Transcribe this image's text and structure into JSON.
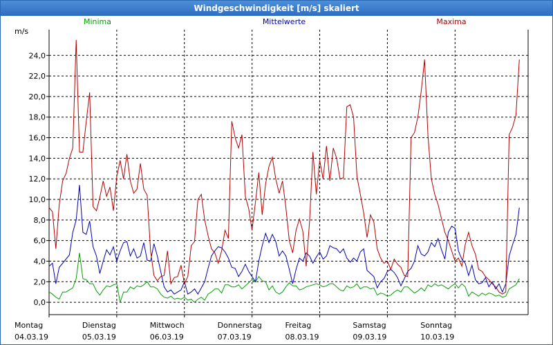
{
  "window": {
    "title": "Windgeschwindigkeit [m/s] skaliert"
  },
  "chart_data": {
    "type": "line",
    "title": "Windgeschwindigkeit [m/s] skaliert",
    "ylabel": "m/s",
    "ylim": [
      -1.2,
      26.5
    ],
    "yticks": [
      0,
      2,
      4,
      6,
      8,
      10,
      12,
      14,
      16,
      18,
      20,
      22,
      24
    ],
    "ytick_labels": [
      "0,0",
      "2,0",
      "4,0",
      "6,0",
      "8,0",
      "10,0",
      "12,0",
      "14,0",
      "16,0",
      "18,0",
      "20,0",
      "22,0",
      "24,0"
    ],
    "xlim": [
      0,
      7.08
    ],
    "x_ticks": [
      {
        "x": 0,
        "day": "Montag",
        "date": "04.03.19"
      },
      {
        "x": 1,
        "day": "Dienstag",
        "date": "05.03.19"
      },
      {
        "x": 2,
        "day": "Mittwoch",
        "date": "06.03.19"
      },
      {
        "x": 3,
        "day": "Donnerstag",
        "date": "07.03.19"
      },
      {
        "x": 4,
        "day": "Freitag",
        "date": "08.03.19"
      },
      {
        "x": 5,
        "day": "Samstag",
        "date": "09.03.19"
      },
      {
        "x": 6,
        "day": "Sonntag",
        "date": "10.03.19"
      }
    ],
    "grid": true,
    "series": [
      {
        "name": "Minima",
        "color": "#00a000",
        "x": [
          0.0,
          0.05,
          0.1,
          0.15,
          0.2,
          0.25,
          0.3,
          0.35,
          0.4,
          0.45,
          0.5,
          0.55,
          0.6,
          0.65,
          0.7,
          0.75,
          0.8,
          0.85,
          0.9,
          0.95,
          1.0,
          1.05,
          1.1,
          1.15,
          1.2,
          1.25,
          1.3,
          1.35,
          1.4,
          1.45,
          1.5,
          1.55,
          1.6,
          1.65,
          1.7,
          1.75,
          1.8,
          1.85,
          1.9,
          1.95,
          2.0,
          2.05,
          2.1,
          2.15,
          2.2,
          2.25,
          2.3,
          2.35,
          2.4,
          2.45,
          2.5,
          2.55,
          2.6,
          2.65,
          2.7,
          2.75,
          2.8,
          2.85,
          2.9,
          2.95,
          3.0,
          3.05,
          3.1,
          3.15,
          3.2,
          3.25,
          3.3,
          3.35,
          3.4,
          3.45,
          3.5,
          3.55,
          3.6,
          3.65,
          3.7,
          3.75,
          3.8,
          3.85,
          3.9,
          3.95,
          4.0,
          4.05,
          4.1,
          4.15,
          4.2,
          4.25,
          4.3,
          4.35,
          4.4,
          4.45,
          4.5,
          4.55,
          4.6,
          4.65,
          4.7,
          4.75,
          4.8,
          4.85,
          4.9,
          4.95,
          5.0,
          5.05,
          5.1,
          5.15,
          5.2,
          5.25,
          5.3,
          5.35,
          5.4,
          5.45,
          5.5,
          5.55,
          5.6,
          5.65,
          5.7,
          5.75,
          5.8,
          5.85,
          5.9,
          5.95,
          6.0,
          6.05,
          6.1,
          6.15,
          6.2,
          6.25,
          6.3,
          6.35,
          6.4,
          6.45,
          6.5,
          6.55,
          6.6,
          6.65,
          6.7,
          6.75,
          6.8,
          6.85,
          6.9,
          6.95
        ],
        "values": [
          1.0,
          0.8,
          0.5,
          0.3,
          1.0,
          1.0,
          1.2,
          1.4,
          2.3,
          4.8,
          2.3,
          2.2,
          1.8,
          1.8,
          1.1,
          0.7,
          1.2,
          1.6,
          1.5,
          1.7,
          1.8,
          0.0,
          1.0,
          1.0,
          1.5,
          1.3,
          1.6,
          1.5,
          1.7,
          2.0,
          1.5,
          1.5,
          1.3,
          0.8,
          0.5,
          0.4,
          0.6,
          0.3,
          0.4,
          0.3,
          0.5,
          0.2,
          0.3,
          0.0,
          0.3,
          0.5,
          0.2,
          0.8,
          1.0,
          1.3,
          1.3,
          0.9,
          1.7,
          1.7,
          1.5,
          1.5,
          1.7,
          1.3,
          1.6,
          1.9,
          2.2,
          2.0,
          2.5,
          2.1,
          2.0,
          1.2,
          1.6,
          1.0,
          0.8,
          1.0,
          1.5,
          1.9,
          1.6,
          1.6,
          1.2,
          1.3,
          1.5,
          1.6,
          1.7,
          1.8,
          1.7,
          1.5,
          1.6,
          1.8,
          1.8,
          1.5,
          1.2,
          1.1,
          1.6,
          1.4,
          1.5,
          1.8,
          1.3,
          1.5,
          1.5,
          1.3,
          1.4,
          0.7,
          0.9,
          0.8,
          0.6,
          0.7,
          1.0,
          1.2,
          1.0,
          1.5,
          1.5,
          1.2,
          0.9,
          1.1,
          1.4,
          1.1,
          1.7,
          1.5,
          1.8,
          1.6,
          1.7,
          1.5,
          1.3,
          1.6,
          1.8,
          1.4,
          1.8,
          1.5,
          0.6,
          1.0,
          0.8,
          0.6,
          0.9,
          0.7,
          0.9,
          0.8,
          0.6,
          0.7,
          0.5,
          0.6,
          1.3,
          1.5,
          1.7,
          2.3
        ]
      },
      {
        "name": "Mittelwerte",
        "color": "#0000b0",
        "x": [
          0.0,
          0.05,
          0.1,
          0.15,
          0.2,
          0.25,
          0.3,
          0.35,
          0.4,
          0.45,
          0.5,
          0.55,
          0.6,
          0.65,
          0.7,
          0.75,
          0.8,
          0.85,
          0.9,
          0.95,
          1.0,
          1.05,
          1.1,
          1.15,
          1.2,
          1.25,
          1.3,
          1.35,
          1.4,
          1.45,
          1.5,
          1.55,
          1.6,
          1.65,
          1.7,
          1.75,
          1.8,
          1.85,
          1.9,
          1.95,
          2.0,
          2.05,
          2.1,
          2.15,
          2.2,
          2.25,
          2.3,
          2.35,
          2.4,
          2.45,
          2.5,
          2.55,
          2.6,
          2.65,
          2.7,
          2.75,
          2.8,
          2.85,
          2.9,
          2.95,
          3.0,
          3.05,
          3.1,
          3.15,
          3.2,
          3.25,
          3.3,
          3.35,
          3.4,
          3.45,
          3.5,
          3.55,
          3.6,
          3.65,
          3.7,
          3.75,
          3.8,
          3.85,
          3.9,
          3.95,
          4.0,
          4.05,
          4.1,
          4.15,
          4.2,
          4.25,
          4.3,
          4.35,
          4.4,
          4.45,
          4.5,
          4.55,
          4.6,
          4.65,
          4.7,
          4.75,
          4.8,
          4.85,
          4.9,
          4.95,
          5.0,
          5.05,
          5.1,
          5.15,
          5.2,
          5.25,
          5.3,
          5.35,
          5.4,
          5.45,
          5.5,
          5.55,
          5.6,
          5.65,
          5.7,
          5.75,
          5.8,
          5.85,
          5.9,
          5.95,
          6.0,
          6.05,
          6.1,
          6.15,
          6.2,
          6.25,
          6.3,
          6.35,
          6.4,
          6.45,
          6.5,
          6.55,
          6.6,
          6.65,
          6.7,
          6.75,
          6.8,
          6.85,
          6.9,
          6.95
        ],
        "values": [
          3.5,
          3.8,
          1.8,
          3.4,
          3.8,
          4.2,
          4.6,
          6.8,
          8.0,
          11.4,
          6.8,
          6.6,
          7.9,
          5.4,
          4.5,
          2.8,
          4.0,
          5.1,
          4.6,
          5.4,
          4.0,
          5.0,
          5.8,
          5.9,
          4.5,
          5.2,
          4.3,
          4.5,
          5.8,
          4.1,
          4.0,
          5.7,
          4.5,
          3.0,
          1.5,
          1.0,
          1.2,
          0.8,
          1.0,
          1.2,
          2.0,
          0.8,
          1.0,
          1.3,
          0.8,
          1.4,
          2.0,
          3.3,
          4.5,
          5.0,
          5.4,
          5.3,
          4.9,
          4.3,
          3.4,
          3.3,
          2.5,
          3.0,
          3.7,
          3.0,
          2.5,
          2.0,
          4.0,
          5.5,
          6.7,
          5.8,
          6.6,
          5.9,
          4.5,
          5.0,
          4.5,
          3.2,
          1.8,
          3.2,
          4.3,
          4.0,
          4.8,
          4.5,
          3.8,
          4.4,
          4.9,
          4.2,
          4.5,
          5.5,
          5.3,
          5.2,
          4.8,
          5.2,
          4.3,
          3.9,
          4.3,
          4.0,
          4.9,
          5.2,
          3.1,
          2.8,
          2.5,
          1.4,
          2.0,
          2.3,
          3.0,
          3.2,
          2.9,
          2.4,
          1.6,
          2.3,
          3.0,
          3.3,
          4.0,
          5.5,
          4.7,
          4.5,
          4.9,
          5.8,
          5.4,
          6.2,
          5.1,
          4.2,
          6.8,
          7.4,
          7.2,
          5.0,
          4.2,
          3.8,
          2.6,
          3.6,
          2.2,
          1.8,
          1.9,
          2.4,
          1.5,
          2.0,
          1.3,
          1.8,
          1.0,
          1.8,
          4.5,
          5.6,
          6.6,
          9.2
        ]
      },
      {
        "name": "Maxima",
        "color": "#b00000",
        "x": [
          0.0,
          0.05,
          0.1,
          0.15,
          0.2,
          0.25,
          0.3,
          0.35,
          0.4,
          0.45,
          0.5,
          0.55,
          0.6,
          0.65,
          0.7,
          0.75,
          0.8,
          0.85,
          0.9,
          0.95,
          1.0,
          1.05,
          1.1,
          1.15,
          1.2,
          1.25,
          1.3,
          1.35,
          1.4,
          1.45,
          1.5,
          1.55,
          1.6,
          1.65,
          1.7,
          1.75,
          1.8,
          1.85,
          1.9,
          1.95,
          2.0,
          2.05,
          2.1,
          2.15,
          2.2,
          2.25,
          2.3,
          2.35,
          2.4,
          2.45,
          2.5,
          2.55,
          2.6,
          2.65,
          2.7,
          2.75,
          2.8,
          2.85,
          2.9,
          2.95,
          3.0,
          3.05,
          3.1,
          3.15,
          3.2,
          3.25,
          3.3,
          3.35,
          3.4,
          3.45,
          3.5,
          3.55,
          3.6,
          3.65,
          3.7,
          3.75,
          3.8,
          3.85,
          3.9,
          3.95,
          4.0,
          4.05,
          4.1,
          4.15,
          4.2,
          4.25,
          4.3,
          4.35,
          4.4,
          4.45,
          4.5,
          4.55,
          4.6,
          4.65,
          4.7,
          4.75,
          4.8,
          4.85,
          4.9,
          4.95,
          5.0,
          5.05,
          5.1,
          5.15,
          5.2,
          5.25,
          5.3,
          5.35,
          5.4,
          5.45,
          5.5,
          5.55,
          5.6,
          5.65,
          5.7,
          5.75,
          5.8,
          5.85,
          5.9,
          5.95,
          6.0,
          6.05,
          6.1,
          6.15,
          6.2,
          6.25,
          6.3,
          6.35,
          6.4,
          6.45,
          6.5,
          6.55,
          6.6,
          6.65,
          6.7,
          6.75,
          6.8,
          6.85,
          6.9,
          6.95
        ],
        "values": [
          9.2,
          8.8,
          5.2,
          9.5,
          11.8,
          12.5,
          14.0,
          15.0,
          25.5,
          14.6,
          14.6,
          17.6,
          20.4,
          9.3,
          8.9,
          10.2,
          11.8,
          10.3,
          11.2,
          8.9,
          12.2,
          13.8,
          12.0,
          14.4,
          11.8,
          10.6,
          11.0,
          13.5,
          11.0,
          10.4,
          5.0,
          2.6,
          2.1,
          2.5,
          2.6,
          5.0,
          1.8,
          2.4,
          2.5,
          3.6,
          1.8,
          2.5,
          5.5,
          5.9,
          10.0,
          10.5,
          8.0,
          6.5,
          5.2,
          4.8,
          3.8,
          5.0,
          7.0,
          6.2,
          17.6,
          16.0,
          15.0,
          16.3,
          10.3,
          9.1,
          7.0,
          9.7,
          12.6,
          8.5,
          11.5,
          13.2,
          14.1,
          12.0,
          10.6,
          11.8,
          9.2,
          6.0,
          4.8,
          7.0,
          8.1,
          6.9,
          3.5,
          7.8,
          14.6,
          10.5,
          13.8,
          12.0,
          15.2,
          11.8,
          15.0,
          14.0,
          12.0,
          12.1,
          19.0,
          19.2,
          18.0,
          12.2,
          10.5,
          8.7,
          6.3,
          8.5,
          7.8,
          5.2,
          4.3,
          3.8,
          4.0,
          3.2,
          4.2,
          3.7,
          3.4,
          2.6,
          2.5,
          16.0,
          16.5,
          18.0,
          20.5,
          23.6,
          16.2,
          12.0,
          10.5,
          9.5,
          8.1,
          6.8,
          6.0,
          5.0,
          4.0,
          4.3,
          3.5,
          5.6,
          6.8,
          5.5,
          4.7,
          3.2,
          3.0,
          2.5,
          2.2,
          1.8,
          1.5,
          1.0,
          0.8,
          1.0,
          16.3,
          17.0,
          18.2,
          23.6
        ]
      }
    ]
  }
}
